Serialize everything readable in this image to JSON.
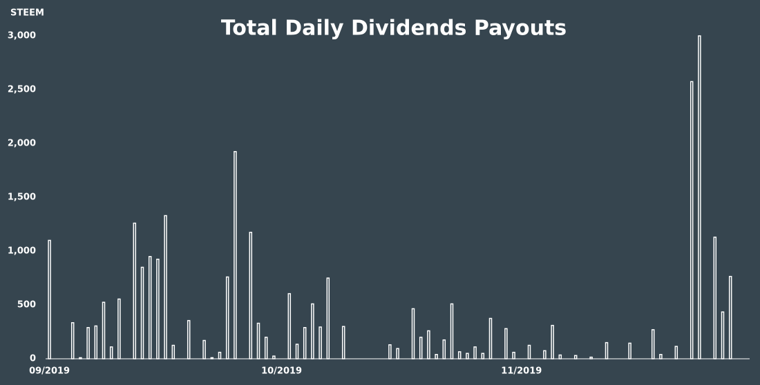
{
  "chart_data": {
    "type": "bar",
    "title": "Total Daily Dividends Payouts",
    "y_label": "STEEM",
    "categories": [
      "09/2019",
      null,
      null,
      null,
      null,
      null,
      null,
      null,
      null,
      null,
      null,
      null,
      null,
      null,
      null,
      null,
      null,
      null,
      null,
      null,
      null,
      null,
      null,
      null,
      null,
      null,
      null,
      null,
      null,
      null,
      "10/2019",
      null,
      null,
      null,
      null,
      null,
      null,
      null,
      null,
      null,
      null,
      null,
      null,
      null,
      null,
      null,
      null,
      null,
      null,
      null,
      null,
      null,
      null,
      null,
      null,
      null,
      null,
      null,
      null,
      null,
      null,
      "11/2019",
      null,
      null,
      null,
      null,
      null,
      null,
      null,
      null,
      null,
      null,
      null,
      null,
      null,
      null,
      null,
      null,
      null,
      null,
      null,
      null,
      null,
      null,
      null,
      null,
      null,
      null,
      null,
      null,
      null
    ],
    "values": [
      1100,
      0,
      0,
      335,
      10,
      290,
      305,
      525,
      110,
      555,
      0,
      1260,
      850,
      950,
      925,
      1330,
      125,
      0,
      355,
      0,
      170,
      10,
      60,
      760,
      1925,
      0,
      1175,
      330,
      200,
      25,
      0,
      605,
      135,
      290,
      510,
      295,
      750,
      0,
      300,
      0,
      0,
      0,
      0,
      0,
      130,
      95,
      0,
      465,
      200,
      260,
      40,
      175,
      510,
      65,
      50,
      110,
      50,
      375,
      0,
      280,
      60,
      0,
      125,
      0,
      75,
      310,
      35,
      0,
      30,
      0,
      15,
      0,
      150,
      0,
      0,
      145,
      0,
      0,
      270,
      40,
      0,
      115,
      0,
      2575,
      3000,
      0,
      1130,
      435,
      765,
      0,
      0
    ],
    "color": "#ffffff",
    "ylim": [
      0,
      3000
    ],
    "yticks": [
      0,
      500,
      {
        "value": 1000,
        "label": "1,000"
      },
      {
        "value": 1500,
        "label": "1,500"
      },
      {
        "value": 2000,
        "label": "2,000"
      },
      {
        "value": 2500,
        "label": "2,500"
      },
      {
        "value": 3000,
        "label": "3,000"
      }
    ]
  }
}
